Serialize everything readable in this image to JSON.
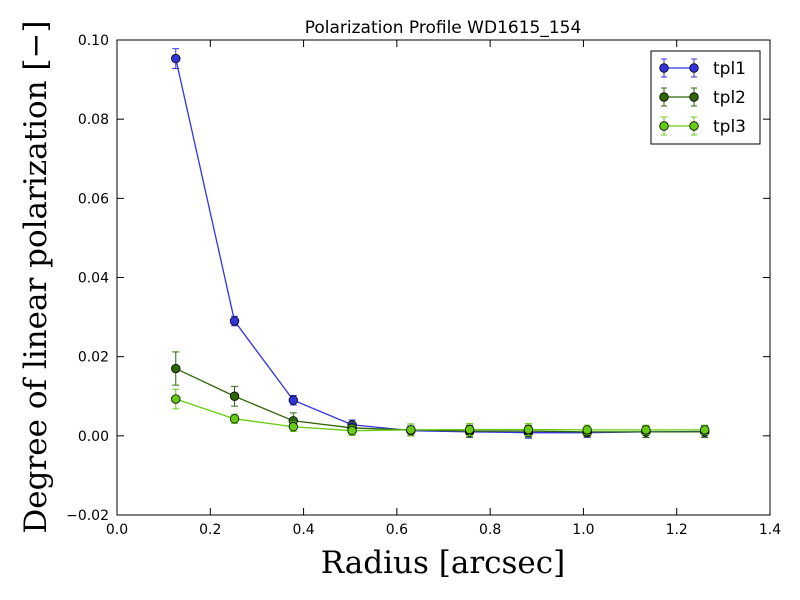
{
  "chart_data": {
    "type": "line",
    "title": "Polarization Profile WD1615_154",
    "xlabel": "Radius [arcsec]",
    "ylabel": "Degree of linear polarization [−]",
    "xlim": [
      0.0,
      1.4
    ],
    "ylim": [
      -0.02,
      0.1
    ],
    "xticks": [
      "0.0",
      "0.2",
      "0.4",
      "0.6",
      "0.8",
      "1.0",
      "1.2",
      "1.4"
    ],
    "yticks": [
      "−0.02",
      "0.00",
      "0.02",
      "0.04",
      "0.06",
      "0.08",
      "0.10"
    ],
    "grid": false,
    "legend_position": "top-right",
    "x": [
      0.126,
      0.252,
      0.378,
      0.504,
      0.63,
      0.756,
      0.882,
      1.008,
      1.134,
      1.26
    ],
    "series": [
      {
        "name": "tpl1",
        "color": "#3333dd",
        "values": [
          0.0953,
          0.029,
          0.009,
          0.0028,
          0.0013,
          0.001,
          0.0008,
          0.0008,
          0.001,
          0.0011
        ],
        "errors": [
          0.0025,
          0.0012,
          0.0012,
          0.0012,
          0.0012,
          0.0014,
          0.0014,
          0.0012,
          0.0014,
          0.0014
        ]
      },
      {
        "name": "tpl2",
        "color": "#2f6608",
        "values": [
          0.017,
          0.01,
          0.0038,
          0.002,
          0.0015,
          0.0012,
          0.0012,
          0.001,
          0.001,
          0.001
        ],
        "errors": [
          0.0042,
          0.0025,
          0.002,
          0.0015,
          0.0015,
          0.0015,
          0.0015,
          0.0012,
          0.0014,
          0.0014
        ]
      },
      {
        "name": "tpl3",
        "color": "#66cc11",
        "values": [
          0.0093,
          0.0043,
          0.0023,
          0.0013,
          0.0015,
          0.0016,
          0.0016,
          0.0015,
          0.0015,
          0.0015
        ],
        "errors": [
          0.0025,
          0.0012,
          0.0012,
          0.0012,
          0.0015,
          0.0015,
          0.0015,
          0.0012,
          0.0012,
          0.0012
        ]
      }
    ]
  }
}
